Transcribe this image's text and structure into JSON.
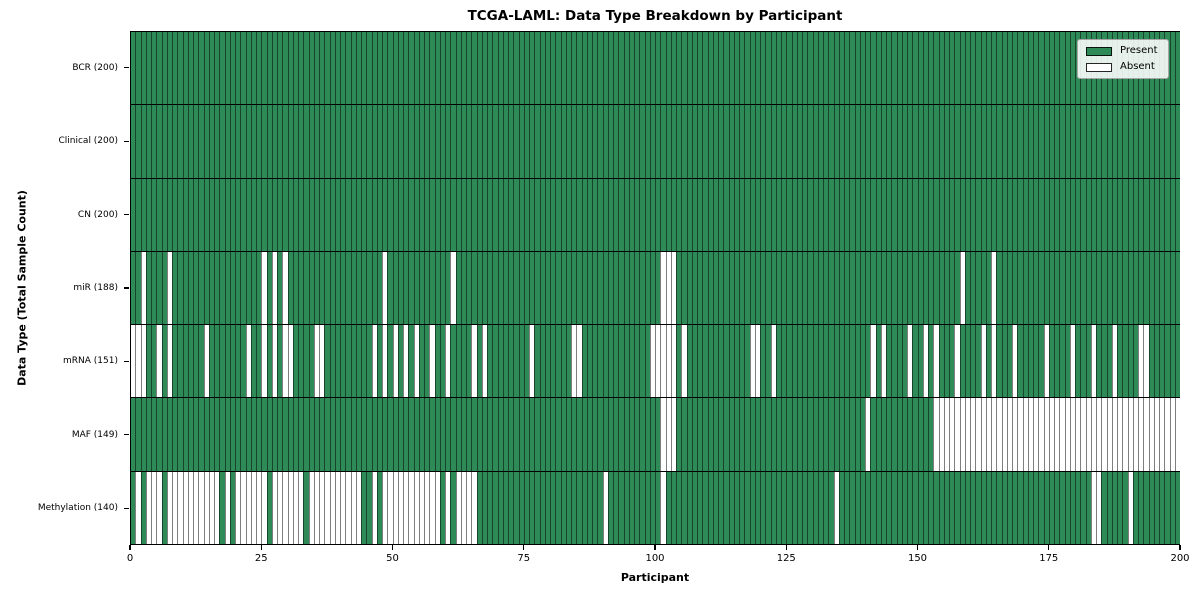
{
  "chart_data": {
    "type": "heatmap",
    "title": "TCGA-LAML: Data Type Breakdown by Participant",
    "xlabel": "Participant",
    "ylabel": "Data Type (Total Sample Count)",
    "participants": 200,
    "x_range": [
      0,
      200
    ],
    "x_ticks": [
      0,
      25,
      50,
      75,
      100,
      125,
      150,
      175,
      200
    ],
    "grid": false,
    "legend": {
      "position": "upper right",
      "entries": [
        {
          "label": "Present",
          "color": "#2e8b57"
        },
        {
          "label": "Absent",
          "color": "#ffffff"
        }
      ]
    },
    "colors": {
      "present": "#2e8b57",
      "absent": "#ffffff",
      "cell_edge": "rgba(0,0,0,0.5)",
      "frame": "#000000"
    },
    "rows": [
      {
        "label": "BCR (200)",
        "data_type": "BCR",
        "total_samples": 200,
        "absent_participants": []
      },
      {
        "label": "Clinical (200)",
        "data_type": "Clinical",
        "total_samples": 200,
        "absent_participants": []
      },
      {
        "label": "CN (200)",
        "data_type": "CN",
        "total_samples": 200,
        "absent_participants": []
      },
      {
        "label": "miR (188)",
        "data_type": "miR",
        "total_samples": 188,
        "absent_participants": [
          2,
          7,
          25,
          27,
          29,
          48,
          61,
          101,
          102,
          103,
          158,
          164
        ]
      },
      {
        "label": "mRNA (151)",
        "data_type": "mRNA",
        "total_samples": 151,
        "absent_participants": [
          0,
          1,
          2,
          5,
          7,
          14,
          22,
          25,
          27,
          29,
          30,
          35,
          36,
          46,
          48,
          50,
          52,
          54,
          57,
          60,
          65,
          67,
          76,
          84,
          85,
          99,
          100,
          101,
          102,
          103,
          105,
          118,
          119,
          122,
          141,
          143,
          148,
          151,
          153,
          157,
          162,
          164,
          168,
          174,
          179,
          183,
          187,
          192,
          193
        ]
      },
      {
        "label": "MAF (149)",
        "data_type": "MAF",
        "total_samples": 149,
        "absent_participants": [
          101,
          102,
          103,
          140,
          153,
          154,
          155,
          156,
          157,
          158,
          159,
          160,
          161,
          162,
          163,
          164,
          165,
          166,
          167,
          168,
          169,
          170,
          171,
          172,
          173,
          174,
          175,
          176,
          177,
          178,
          179,
          180,
          181,
          182,
          183,
          184,
          185,
          186,
          187,
          188,
          189,
          190,
          191,
          192,
          193,
          194,
          195,
          196,
          197,
          198,
          199
        ]
      },
      {
        "label": "Methylation (140)",
        "data_type": "Methylation",
        "total_samples": 140,
        "absent_participants": [
          1,
          3,
          4,
          5,
          7,
          8,
          9,
          10,
          11,
          12,
          13,
          14,
          15,
          16,
          18,
          20,
          21,
          22,
          23,
          24,
          25,
          27,
          28,
          29,
          30,
          31,
          32,
          34,
          35,
          36,
          37,
          38,
          39,
          40,
          41,
          42,
          43,
          46,
          48,
          49,
          50,
          51,
          52,
          53,
          54,
          55,
          56,
          57,
          58,
          60,
          62,
          63,
          64,
          65,
          90,
          101,
          134,
          183,
          184,
          190
        ]
      }
    ]
  }
}
